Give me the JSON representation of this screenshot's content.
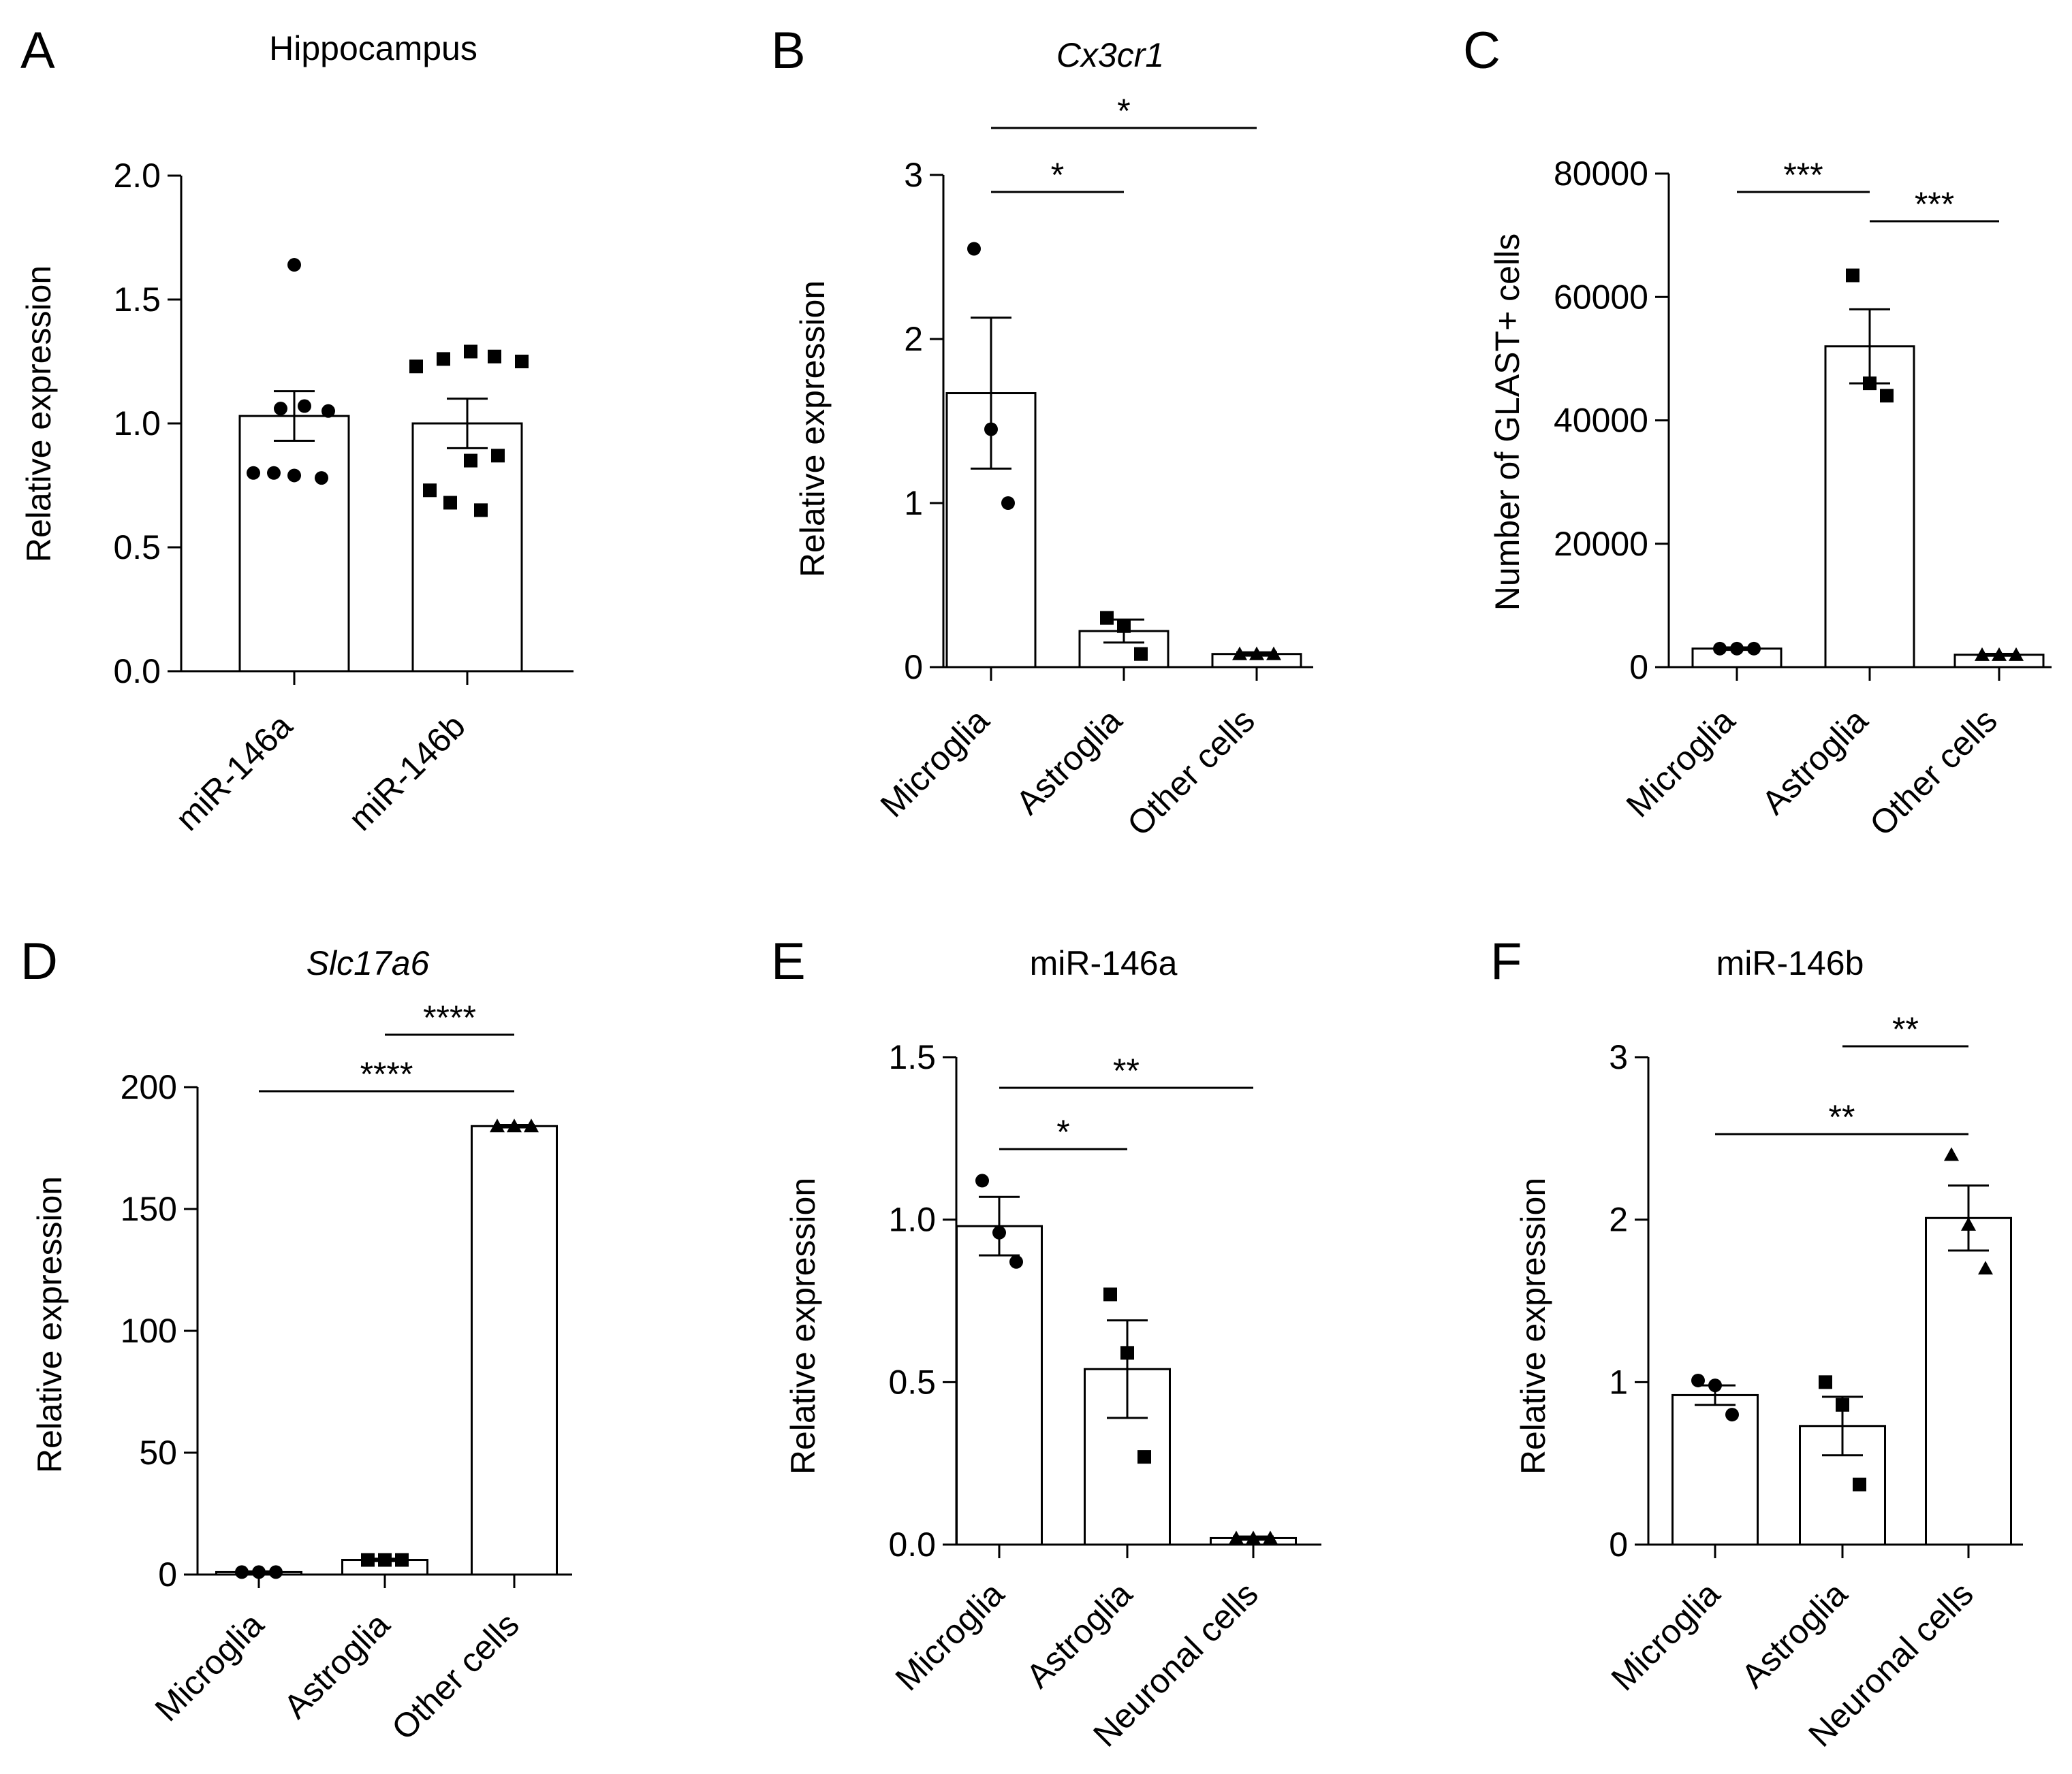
{
  "figure": {
    "background": "#ffffff",
    "ink": "#000000"
  },
  "chart_data": [
    {
      "panel": "A",
      "type": "bar",
      "title": "Hippocampus",
      "title_italic": false,
      "xlabel": "",
      "ylabel": "Relative expression",
      "ylim": [
        0,
        2.0
      ],
      "yticks": [
        0.0,
        0.5,
        1.0,
        1.5,
        2.0
      ],
      "ytick_labels": [
        "0.0",
        "0.5",
        "1.0",
        "1.5",
        "2.0"
      ],
      "categories": [
        "miR-146a",
        "miR-146b"
      ],
      "values": [
        1.03,
        1.0
      ],
      "sem": [
        0.1,
        0.1
      ],
      "markers": [
        "circle",
        "square"
      ],
      "points": [
        [
          1.64,
          1.06,
          1.07,
          1.05,
          0.8,
          0.79,
          0.8,
          0.78
        ],
        [
          1.23,
          1.26,
          1.29,
          1.27,
          1.25,
          0.87,
          0.85,
          0.73,
          0.68,
          0.65
        ]
      ],
      "significance": []
    },
    {
      "panel": "B",
      "type": "bar",
      "title": "Cx3cr1",
      "title_italic": true,
      "xlabel": "",
      "ylabel": "Relative expression",
      "ylim": [
        0,
        3
      ],
      "yticks": [
        0,
        1,
        2,
        3
      ],
      "ytick_labels": [
        "0",
        "1",
        "2",
        "3"
      ],
      "categories": [
        "Microglia",
        "Astroglia",
        "Other cells"
      ],
      "values": [
        1.67,
        0.22,
        0.08
      ],
      "sem": [
        0.46,
        0.07,
        0.01
      ],
      "markers": [
        "circle",
        "square",
        "triangle"
      ],
      "points": [
        [
          2.55,
          1.45,
          1.0
        ],
        [
          0.3,
          0.25,
          0.08
        ],
        [
          0.08,
          0.08,
          0.08
        ]
      ],
      "significance": [
        {
          "from": 0,
          "to": 1,
          "label": "*"
        },
        {
          "from": 0,
          "to": 2,
          "label": "*"
        }
      ]
    },
    {
      "panel": "C",
      "type": "bar",
      "title": "",
      "title_italic": false,
      "xlabel": "",
      "ylabel": "Number of GLAST+ cells",
      "ylim": [
        0,
        80000
      ],
      "yticks": [
        0,
        20000,
        40000,
        60000,
        80000
      ],
      "ytick_labels": [
        "0",
        "20000",
        "40000",
        "60000",
        "80000"
      ],
      "categories": [
        "Microglia",
        "Astroglia",
        "Other cells"
      ],
      "values": [
        3000,
        52000,
        2000
      ],
      "sem": [
        200,
        6000,
        150
      ],
      "markers": [
        "circle",
        "square",
        "triangle"
      ],
      "points": [
        [
          3000,
          3000,
          3000
        ],
        [
          63500,
          46000,
          44000
        ],
        [
          2000,
          2000,
          2000
        ]
      ],
      "significance": [
        {
          "from": 0,
          "to": 1,
          "label": "***"
        },
        {
          "from": 1,
          "to": 2,
          "label": "***"
        }
      ]
    },
    {
      "panel": "D",
      "type": "bar",
      "title": "Slc17a6",
      "title_italic": true,
      "xlabel": "",
      "ylabel": "Relative expression",
      "ylim": [
        0,
        200
      ],
      "yticks": [
        0,
        50,
        100,
        150,
        200
      ],
      "ytick_labels": [
        "0",
        "50",
        "100",
        "150",
        "200"
      ],
      "categories": [
        "Microglia",
        "Astroglia",
        "Other cells"
      ],
      "values": [
        1,
        6,
        184
      ],
      "sem": [
        0.3,
        0.5,
        0.5
      ],
      "markers": [
        "circle",
        "square",
        "triangle"
      ],
      "points": [
        [
          1,
          1,
          1
        ],
        [
          6,
          6,
          6
        ],
        [
          184,
          184,
          184
        ]
      ],
      "significance": [
        {
          "from": 1,
          "to": 2,
          "label": "****"
        },
        {
          "from": 0,
          "to": 2,
          "label": "****"
        }
      ]
    },
    {
      "panel": "E",
      "type": "bar",
      "title": "miR-146a",
      "title_italic": false,
      "xlabel": "",
      "ylabel": "Relative expression",
      "ylim": [
        0,
        1.5
      ],
      "yticks": [
        0.0,
        0.5,
        1.0,
        1.5
      ],
      "ytick_labels": [
        "0.0",
        "0.5",
        "1.0",
        "1.5"
      ],
      "categories": [
        "Microglia",
        "Astroglia",
        "Neuronal cells"
      ],
      "values": [
        0.98,
        0.54,
        0.02
      ],
      "sem": [
        0.09,
        0.15,
        0.005
      ],
      "markers": [
        "circle",
        "square",
        "triangle"
      ],
      "points": [
        [
          1.12,
          0.96,
          0.87
        ],
        [
          0.77,
          0.59,
          0.27
        ],
        [
          0.02,
          0.02,
          0.02
        ]
      ],
      "significance": [
        {
          "from": 0,
          "to": 1,
          "label": "*"
        },
        {
          "from": 0,
          "to": 2,
          "label": "**"
        }
      ]
    },
    {
      "panel": "F",
      "type": "bar",
      "title": "miR-146b",
      "title_italic": false,
      "xlabel": "",
      "ylabel": "Relative expression",
      "ylim": [
        0,
        3
      ],
      "yticks": [
        0,
        1,
        2,
        3
      ],
      "ytick_labels": [
        "0",
        "1",
        "2",
        "3"
      ],
      "categories": [
        "Microglia",
        "Astroglia",
        "Neuronal cells"
      ],
      "values": [
        0.92,
        0.73,
        2.01
      ],
      "sem": [
        0.06,
        0.18,
        0.2
      ],
      "markers": [
        "circle",
        "square",
        "triangle"
      ],
      "points": [
        [
          1.01,
          0.98,
          0.8
        ],
        [
          1.0,
          0.86,
          0.37
        ],
        [
          2.4,
          1.97,
          1.7
        ]
      ],
      "significance": [
        {
          "from": 1,
          "to": 2,
          "label": "**"
        },
        {
          "from": 0,
          "to": 2,
          "label": "**"
        }
      ]
    }
  ]
}
